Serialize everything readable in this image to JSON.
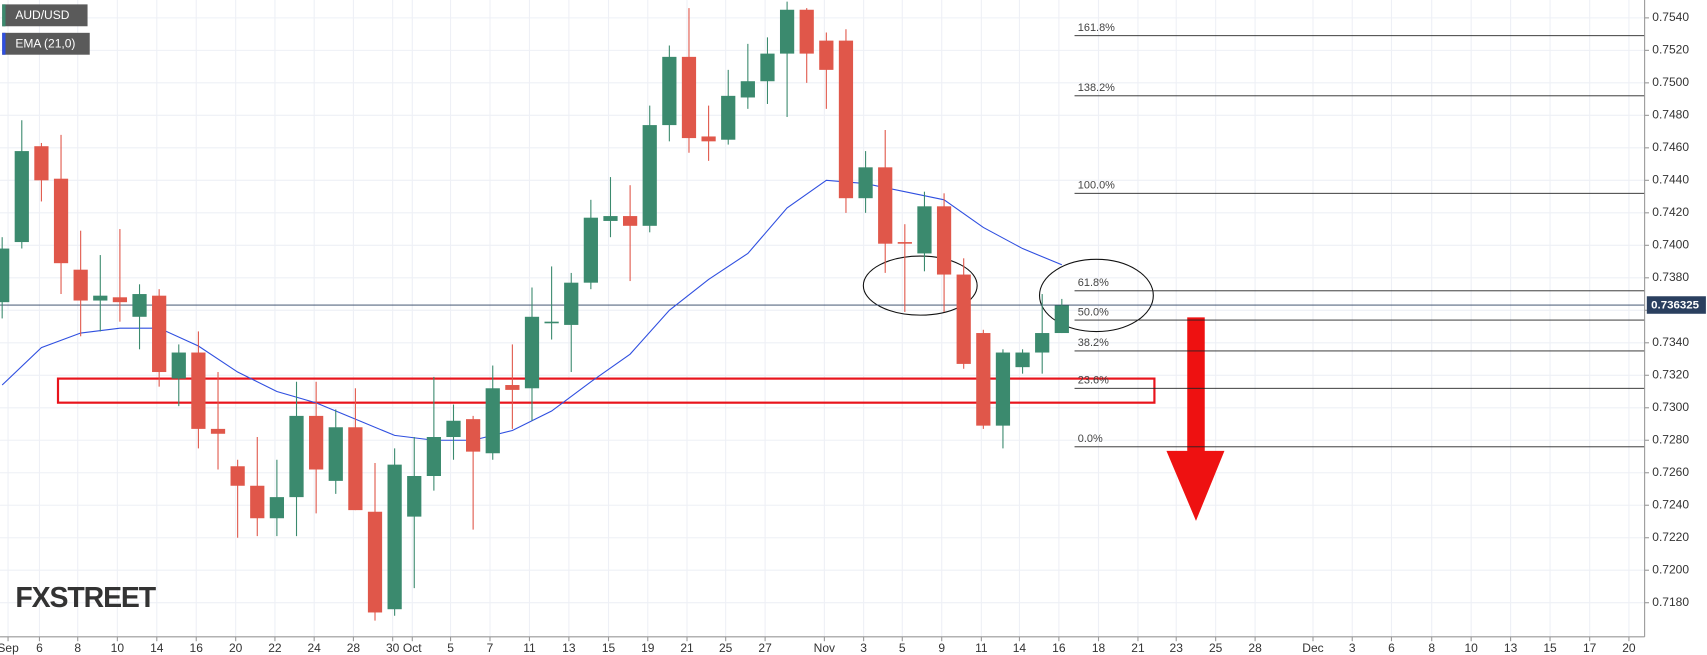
{
  "chart_data": {
    "type": "candlestick",
    "series": [
      {
        "name": "AUD/USD",
        "up_color": "#3b8a6e",
        "down_color": "#e0574a",
        "open": [
          0.7365,
          0.7402,
          0.7461,
          0.7441,
          0.7385,
          0.7366,
          0.7368,
          0.7356,
          0.7369,
          0.7318,
          0.7334,
          0.7287,
          0.7264,
          0.7252,
          0.7232,
          0.7245,
          0.7295,
          0.7255,
          0.7288,
          0.7236,
          0.7176,
          0.7233,
          0.7258,
          0.7282,
          0.7293,
          0.7272,
          0.7314,
          0.7312,
          0.7352,
          0.7351,
          0.7377,
          0.7415,
          0.7418,
          0.7412,
          0.7474,
          0.7516,
          0.7467,
          0.7465,
          0.7491,
          0.7501,
          0.7518,
          0.7545,
          0.7526,
          0.7526,
          0.7429,
          0.7448,
          0.7402,
          0.7395,
          0.7424,
          0.7382,
          0.7346,
          0.7289,
          0.7325,
          0.7334,
          0.7346
        ],
        "high": [
          0.7405,
          0.7477,
          0.7463,
          0.7468,
          0.7409,
          0.7394,
          0.741,
          0.7376,
          0.7373,
          0.7339,
          0.7347,
          0.7322,
          0.7268,
          0.7282,
          0.7268,
          0.7316,
          0.7316,
          0.7299,
          0.7312,
          0.7266,
          0.7275,
          0.7282,
          0.7319,
          0.7302,
          0.7295,
          0.7326,
          0.7339,
          0.7374,
          0.7387,
          0.7383,
          0.7428,
          0.7442,
          0.7437,
          0.7486,
          0.7523,
          0.7546,
          0.7486,
          0.7508,
          0.7524,
          0.7528,
          0.755,
          0.7546,
          0.7531,
          0.7533,
          0.7458,
          0.7471,
          0.7413,
          0.7433,
          0.7432,
          0.7392,
          0.7348,
          0.7336,
          0.7336,
          0.737,
          0.7367
        ],
        "low": [
          0.7355,
          0.7398,
          0.7427,
          0.737,
          0.7344,
          0.7347,
          0.7353,
          0.7336,
          0.7313,
          0.7301,
          0.7275,
          0.7262,
          0.722,
          0.7221,
          0.7221,
          0.7221,
          0.7235,
          0.7247,
          0.7237,
          0.7169,
          0.7172,
          0.7189,
          0.7249,
          0.7268,
          0.7225,
          0.7268,
          0.7287,
          0.7292,
          0.7342,
          0.7322,
          0.7373,
          0.7405,
          0.7378,
          0.7408,
          0.7464,
          0.7457,
          0.7452,
          0.7462,
          0.7484,
          0.7487,
          0.7479,
          0.75,
          0.7484,
          0.742,
          0.742,
          0.7383,
          0.7359,
          0.7384,
          0.7359,
          0.7324,
          0.7287,
          0.7275,
          0.7321,
          0.7321,
          0.7346
        ],
        "close": [
          0.7398,
          0.7458,
          0.744,
          0.7389,
          0.7366,
          0.7369,
          0.7365,
          0.737,
          0.7322,
          0.7334,
          0.7287,
          0.7284,
          0.7252,
          0.7232,
          0.7245,
          0.7295,
          0.7262,
          0.7288,
          0.7237,
          0.7174,
          0.7265,
          0.7258,
          0.7282,
          0.7292,
          0.7273,
          0.7312,
          0.7311,
          0.7356,
          0.7353,
          0.7377,
          0.7417,
          0.7418,
          0.7412,
          0.7474,
          0.7516,
          0.7466,
          0.7464,
          0.7492,
          0.7501,
          0.7518,
          0.7545,
          0.7518,
          0.7508,
          0.7429,
          0.7448,
          0.7401,
          0.7401,
          0.7424,
          0.7382,
          0.7327,
          0.7289,
          0.7334,
          0.7334,
          0.7346,
          0.7363
        ]
      }
    ],
    "ema": {
      "name": "EMA (21,0)",
      "color": "#2f4fe0",
      "x": [
        0,
        2,
        4,
        6,
        8,
        10,
        12,
        14,
        16,
        18,
        20,
        22,
        24,
        26,
        28,
        30,
        32,
        34,
        36,
        38,
        40,
        42,
        44,
        46,
        48,
        50,
        52,
        54
      ],
      "values": [
        0.7314,
        0.7337,
        0.7346,
        0.7349,
        0.7349,
        0.7338,
        0.7322,
        0.731,
        0.7303,
        0.7293,
        0.7283,
        0.728,
        0.728,
        0.7286,
        0.7298,
        0.7316,
        0.7333,
        0.736,
        0.7379,
        0.7395,
        0.7423,
        0.744,
        0.7438,
        0.7433,
        0.7428,
        0.7411,
        0.7398,
        0.7388
      ]
    },
    "last_price": 0.736325,
    "fib_levels": [
      {
        "label": "161.8%",
        "value": 0.7529
      },
      {
        "label": "138.2%",
        "value": 0.7492
      },
      {
        "label": "100.0%",
        "value": 0.7432
      },
      {
        "label": "61.8%",
        "value": 0.7372
      },
      {
        "label": "50.0%",
        "value": 0.7354
      },
      {
        "label": "38.2%",
        "value": 0.7335
      },
      {
        "label": "23.6%",
        "value": 0.7312
      },
      {
        "label": "0.0%",
        "value": 0.7276
      }
    ],
    "xlim": [
      -0.11,
      83.7
    ],
    "xticks": [
      {
        "value": 0.3,
        "label": "Sep"
      },
      {
        "value": 1.9,
        "label": "6"
      },
      {
        "value": 3.85,
        "label": "8"
      },
      {
        "value": 5.87,
        "label": "10"
      },
      {
        "value": 7.88,
        "label": "14"
      },
      {
        "value": 9.89,
        "label": "16"
      },
      {
        "value": 11.9,
        "label": "20"
      },
      {
        "value": 13.9,
        "label": "22"
      },
      {
        "value": 15.9,
        "label": "24"
      },
      {
        "value": 17.9,
        "label": "28"
      },
      {
        "value": 19.9,
        "label": "30"
      },
      {
        "value": 20.9,
        "label": "Oct"
      },
      {
        "value": 22.85,
        "label": "5"
      },
      {
        "value": 24.86,
        "label": "7"
      },
      {
        "value": 26.87,
        "label": "11"
      },
      {
        "value": 28.88,
        "label": "13"
      },
      {
        "value": 30.9,
        "label": "15"
      },
      {
        "value": 32.9,
        "label": "19"
      },
      {
        "value": 34.9,
        "label": "21"
      },
      {
        "value": 36.87,
        "label": "25"
      },
      {
        "value": 38.88,
        "label": "27"
      },
      {
        "value": 41.9,
        "label": "Nov"
      },
      {
        "value": 43.9,
        "label": "3"
      },
      {
        "value": 45.87,
        "label": "5"
      },
      {
        "value": 47.88,
        "label": "9"
      },
      {
        "value": 49.9,
        "label": "11"
      },
      {
        "value": 51.84,
        "label": "14"
      },
      {
        "value": 53.85,
        "label": "16"
      },
      {
        "value": 55.87,
        "label": "18"
      },
      {
        "value": 57.88,
        "label": "21"
      },
      {
        "value": 59.83,
        "label": "23"
      },
      {
        "value": 61.84,
        "label": "25"
      },
      {
        "value": 63.85,
        "label": "28"
      },
      {
        "value": 66.8,
        "label": "Dec"
      },
      {
        "value": 68.8,
        "label": "3"
      },
      {
        "value": 70.8,
        "label": "6"
      },
      {
        "value": 72.85,
        "label": "8"
      },
      {
        "value": 74.86,
        "label": "10"
      },
      {
        "value": 76.87,
        "label": "13"
      },
      {
        "value": 78.88,
        "label": "15"
      },
      {
        "value": 80.9,
        "label": "17"
      },
      {
        "value": 82.9,
        "label": "20"
      }
    ],
    "ylim": [
      0.7159,
      0.7551
    ],
    "yticks": [
      {
        "value": 0.718,
        "label": "0.7180"
      },
      {
        "value": 0.72,
        "label": "0.7200"
      },
      {
        "value": 0.722,
        "label": "0.7220"
      },
      {
        "value": 0.724,
        "label": "0.7240"
      },
      {
        "value": 0.726,
        "label": "0.7260"
      },
      {
        "value": 0.728,
        "label": "0.7280"
      },
      {
        "value": 0.73,
        "label": "0.7300"
      },
      {
        "value": 0.732,
        "label": "0.7320"
      },
      {
        "value": 0.734,
        "label": "0.7340"
      },
      {
        "value": 0.736,
        "label": "0.7360"
      },
      {
        "value": 0.738,
        "label": "0.7380"
      },
      {
        "value": 0.74,
        "label": "0.7400"
      },
      {
        "value": 0.742,
        "label": "0.7420"
      },
      {
        "value": 0.744,
        "label": "0.7440"
      },
      {
        "value": 0.746,
        "label": "0.7460"
      },
      {
        "value": 0.748,
        "label": "0.7480"
      },
      {
        "value": 0.75,
        "label": "0.7500"
      },
      {
        "value": 0.752,
        "label": "0.7520"
      },
      {
        "value": 0.754,
        "label": "0.7540"
      }
    ],
    "grid": true,
    "logo": "FXSTREET"
  }
}
